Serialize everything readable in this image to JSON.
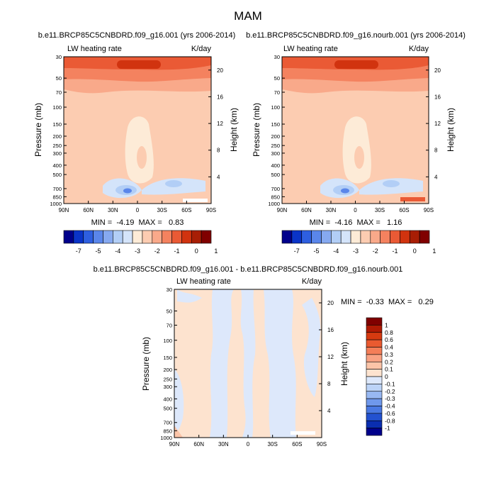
{
  "figure": {
    "title": "MAM"
  },
  "chart_data": [
    {
      "type": "heatmap",
      "title": "b.e11.BRCP85C5CNBDRD.f09_g16.001 (yrs 2006-2014)",
      "left_label": "LW heating rate",
      "right_label": "K/day",
      "ylabel": "Pressure (mb)",
      "ylabel_right": "Height (km)",
      "x_ticks": [
        "90N",
        "60N",
        "30N",
        "0",
        "30S",
        "60S",
        "90S"
      ],
      "p_ticks": [
        "30",
        "50",
        "70",
        "100",
        "150",
        "200",
        "250",
        "300",
        "400",
        "500",
        "700",
        "850",
        "1000"
      ],
      "h_ticks": [
        "20",
        "16",
        "12",
        "8",
        "4"
      ],
      "min_max": "MIN =  -4.19  MAX =   0.83",
      "colorbar": {
        "labels": [
          "-7",
          "-5",
          "-4",
          "-3",
          "-2",
          "-1",
          "0",
          "1"
        ],
        "colors": [
          "#00008b",
          "#0a34c8",
          "#2e5fe0",
          "#5a86ea",
          "#86a9f0",
          "#b2cef6",
          "#d4e4fa",
          "#fdebd7",
          "#fcccb1",
          "#f9a98a",
          "#f4825f",
          "#ea5a35",
          "#d1330f",
          "#a81e05",
          "#800000"
        ]
      }
    },
    {
      "type": "heatmap",
      "title": "b.e11.BRCP85C5CNBDRD.f09_g16.nourb.001 (yrs 2006-2014)",
      "left_label": "LW heating rate",
      "right_label": "K/day",
      "ylabel": "Pressure (mb)",
      "ylabel_right": "Height (km)",
      "x_ticks": [
        "90N",
        "60N",
        "30N",
        "0",
        "30S",
        "60S",
        "90S"
      ],
      "p_ticks": [
        "30",
        "50",
        "70",
        "100",
        "150",
        "200",
        "250",
        "300",
        "400",
        "500",
        "700",
        "850",
        "1000"
      ],
      "h_ticks": [
        "20",
        "16",
        "12",
        "8",
        "4"
      ],
      "min_max": "MIN =  -4.16  MAX =   1.16",
      "colorbar": {
        "labels": [
          "-7",
          "-5",
          "-4",
          "-3",
          "-2",
          "-1",
          "0",
          "1"
        ],
        "colors": [
          "#00008b",
          "#0a34c8",
          "#2e5fe0",
          "#5a86ea",
          "#86a9f0",
          "#b2cef6",
          "#d4e4fa",
          "#fdebd7",
          "#fcccb1",
          "#f9a98a",
          "#f4825f",
          "#ea5a35",
          "#d1330f",
          "#a81e05",
          "#800000"
        ]
      }
    },
    {
      "type": "heatmap",
      "title": "b.e11.BRCP85C5CNBDRD.f09_g16.001 - b.e11.BRCP85C5CNBDRD.f09_g16.nourb.001",
      "left_label": "LW heating rate",
      "right_label": "K/day",
      "ylabel": "Pressure (mb)",
      "ylabel_right": "Height (km)",
      "x_ticks": [
        "90N",
        "60N",
        "30N",
        "0",
        "30S",
        "60S",
        "90S"
      ],
      "p_ticks": [
        "30",
        "50",
        "70",
        "100",
        "150",
        "200",
        "250",
        "300",
        "400",
        "500",
        "700",
        "850",
        "1000"
      ],
      "h_ticks": [
        "20",
        "16",
        "12",
        "8",
        "4"
      ],
      "min_max": "MIN =  -0.33  MAX =   0.29",
      "colorbar": {
        "labels": [
          "1",
          "0.8",
          "0.6",
          "0.4",
          "0.3",
          "0.2",
          "0.1",
          "0",
          "-0.1",
          "-0.2",
          "-0.3",
          "-0.4",
          "-0.6",
          "-0.8",
          "-1"
        ],
        "colors": [
          "#800000",
          "#b01a04",
          "#d63a10",
          "#ea5a30",
          "#f47e58",
          "#f9a283",
          "#fbc4a8",
          "#fde3cf",
          "#dde8fb",
          "#bcd3f7",
          "#98b8f2",
          "#6f98eb",
          "#4a79e2",
          "#2352d0",
          "#0a2eb0",
          "#00008b"
        ]
      }
    }
  ]
}
